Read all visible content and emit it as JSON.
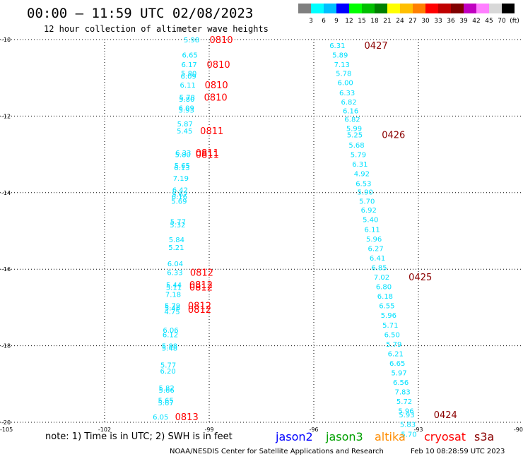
{
  "header": {
    "title": "00:00 – 11:59 UTC 02/08/2023",
    "subtitle": "12 hour collection of altimeter wave heights"
  },
  "color_scale": {
    "labels": [
      "3",
      "6",
      "9",
      "12",
      "15",
      "18",
      "21",
      "24",
      "27",
      "30",
      "33",
      "36",
      "39",
      "42",
      "45",
      "70",
      "(ft)"
    ],
    "colors": [
      "#7f7f7f",
      "#00ffff",
      "#00bfff",
      "#0000ff",
      "#00ff00",
      "#00bf00",
      "#008000",
      "#ffff00",
      "#ffbf00",
      "#ff7f00",
      "#ff0000",
      "#bf0000",
      "#800000",
      "#c000c0",
      "#ff7fff",
      "#d8d8d8",
      "#000000"
    ]
  },
  "axes": {
    "y_ticks": [
      "-10",
      "-12",
      "-14",
      "-16",
      "-18",
      "-20"
    ],
    "x_ticks": [
      "-105",
      "-102",
      "-99",
      "-96",
      "-93",
      "-90"
    ]
  },
  "tracks": [
    {
      "name": "west",
      "color": "#00e0ff",
      "points": [
        {
          "lat": -10.0,
          "lon": -99.73,
          "v": "5.98"
        },
        {
          "lat": -10.4,
          "lon": -99.78,
          "v": "6.65"
        },
        {
          "lat": -10.65,
          "lon": -99.8,
          "v": "6.17"
        },
        {
          "lat": -10.88,
          "lon": -99.81,
          "v": "5.80"
        },
        {
          "lat": -10.95,
          "lon": -99.82,
          "v": "6.09"
        },
        {
          "lat": -11.18,
          "lon": -99.84,
          "v": "6.11"
        },
        {
          "lat": -11.5,
          "lon": -99.86,
          "v": "5.78"
        },
        {
          "lat": -11.55,
          "lon": -99.87,
          "v": "5.80"
        },
        {
          "lat": -11.78,
          "lon": -99.88,
          "v": "6.09"
        },
        {
          "lat": -11.84,
          "lon": -99.88,
          "v": "5.93"
        },
        {
          "lat": -12.2,
          "lon": -99.92,
          "v": "5.87"
        },
        {
          "lat": -12.38,
          "lon": -99.93,
          "v": "5.45"
        },
        {
          "lat": -12.95,
          "lon": -99.97,
          "v": "6.33"
        },
        {
          "lat": -13.0,
          "lon": -99.98,
          "v": "5.80"
        },
        {
          "lat": -13.28,
          "lon": -100.0,
          "v": "5.65"
        },
        {
          "lat": -13.34,
          "lon": -100.01,
          "v": "6.13"
        },
        {
          "lat": -13.62,
          "lon": -100.04,
          "v": "7.19"
        },
        {
          "lat": -13.92,
          "lon": -100.06,
          "v": "6.42"
        },
        {
          "lat": -14.03,
          "lon": -100.07,
          "v": "5.67"
        },
        {
          "lat": -14.1,
          "lon": -100.08,
          "v": "6.16"
        },
        {
          "lat": -14.22,
          "lon": -100.09,
          "v": "5.69"
        },
        {
          "lat": -14.75,
          "lon": -100.12,
          "v": "5.77"
        },
        {
          "lat": -14.83,
          "lon": -100.13,
          "v": "5.32"
        },
        {
          "lat": -15.22,
          "lon": -100.16,
          "v": "5.84"
        },
        {
          "lat": -15.42,
          "lon": -100.17,
          "v": "5.21"
        },
        {
          "lat": -15.85,
          "lon": -100.2,
          "v": "6.04"
        },
        {
          "lat": -16.08,
          "lon": -100.21,
          "v": "6.33"
        },
        {
          "lat": -16.4,
          "lon": -100.24,
          "v": "5.44"
        },
        {
          "lat": -16.47,
          "lon": -100.24,
          "v": "5.11"
        },
        {
          "lat": -16.65,
          "lon": -100.26,
          "v": "7.18"
        },
        {
          "lat": -16.95,
          "lon": -100.28,
          "v": "5.79"
        },
        {
          "lat": -17.0,
          "lon": -100.28,
          "v": "5.46"
        },
        {
          "lat": -17.1,
          "lon": -100.29,
          "v": "4.75"
        },
        {
          "lat": -17.58,
          "lon": -100.33,
          "v": "6.06"
        },
        {
          "lat": -17.7,
          "lon": -100.34,
          "v": "6.12"
        },
        {
          "lat": -18.0,
          "lon": -100.36,
          "v": "5.88"
        },
        {
          "lat": -18.05,
          "lon": -100.36,
          "v": "5.48"
        },
        {
          "lat": -18.5,
          "lon": -100.4,
          "v": "5.77"
        },
        {
          "lat": -18.65,
          "lon": -100.41,
          "v": "6.20"
        },
        {
          "lat": -19.1,
          "lon": -100.45,
          "v": "5.82"
        },
        {
          "lat": -19.15,
          "lon": -100.45,
          "v": "5.66"
        },
        {
          "lat": -19.42,
          "lon": -100.47,
          "v": "5.65"
        },
        {
          "lat": -19.48,
          "lon": -100.47,
          "v": "5.67"
        },
        {
          "lat": -19.85,
          "lon": -100.62,
          "v": "6.05"
        }
      ],
      "passes": [
        {
          "lat": -10.0,
          "lon": -98.99,
          "t": "0810"
        },
        {
          "lat": -10.65,
          "lon": -99.07,
          "t": "0810"
        },
        {
          "lat": -11.18,
          "lon": -99.13,
          "t": "0810"
        },
        {
          "lat": -11.5,
          "lon": -99.15,
          "t": "0810"
        },
        {
          "lat": -12.38,
          "lon": -99.26,
          "t": "0811"
        },
        {
          "lat": -12.95,
          "lon": -99.39,
          "t": "0811"
        },
        {
          "lat": -13.0,
          "lon": -99.39,
          "t": "0811"
        },
        {
          "lat": -16.08,
          "lon": -99.55,
          "t": "0812"
        },
        {
          "lat": -16.4,
          "lon": -99.57,
          "t": "0812"
        },
        {
          "lat": -16.47,
          "lon": -99.57,
          "t": "0812"
        },
        {
          "lat": -16.95,
          "lon": -99.61,
          "t": "0812"
        },
        {
          "lat": -17.05,
          "lon": -99.61,
          "t": "0812"
        },
        {
          "lat": -19.85,
          "lon": -99.98,
          "t": "0813"
        }
      ],
      "pass_color": "#ff0000"
    },
    {
      "name": "east",
      "color": "#00e0ff",
      "points": [
        {
          "lat": -10.15,
          "lon": -95.55,
          "v": "6.31"
        },
        {
          "lat": -10.4,
          "lon": -95.47,
          "v": "5.89"
        },
        {
          "lat": -10.65,
          "lon": -95.42,
          "v": "7.13"
        },
        {
          "lat": -10.88,
          "lon": -95.37,
          "v": "5.78"
        },
        {
          "lat": -11.12,
          "lon": -95.32,
          "v": "6.00"
        },
        {
          "lat": -11.38,
          "lon": -95.27,
          "v": "6.33"
        },
        {
          "lat": -11.62,
          "lon": -95.22,
          "v": "6.82"
        },
        {
          "lat": -11.85,
          "lon": -95.17,
          "v": "6.16"
        },
        {
          "lat": -12.08,
          "lon": -95.12,
          "v": "6.82"
        },
        {
          "lat": -12.32,
          "lon": -95.07,
          "v": "5.99"
        },
        {
          "lat": -12.48,
          "lon": -95.05,
          "v": "5.25"
        },
        {
          "lat": -12.75,
          "lon": -95.0,
          "v": "5.68"
        },
        {
          "lat": -13.0,
          "lon": -94.95,
          "v": "5.79"
        },
        {
          "lat": -13.25,
          "lon": -94.9,
          "v": "6.31"
        },
        {
          "lat": -13.5,
          "lon": -94.85,
          "v": "4.92"
        },
        {
          "lat": -13.75,
          "lon": -94.8,
          "v": "6.53"
        },
        {
          "lat": -13.98,
          "lon": -94.75,
          "v": "5.90"
        },
        {
          "lat": -14.22,
          "lon": -94.7,
          "v": "5.70"
        },
        {
          "lat": -14.45,
          "lon": -94.65,
          "v": "6.92"
        },
        {
          "lat": -14.7,
          "lon": -94.6,
          "v": "5.40"
        },
        {
          "lat": -14.95,
          "lon": -94.55,
          "v": "6.11"
        },
        {
          "lat": -15.2,
          "lon": -94.5,
          "v": "5.96"
        },
        {
          "lat": -15.45,
          "lon": -94.45,
          "v": "6.27"
        },
        {
          "lat": -15.7,
          "lon": -94.4,
          "v": "6.41"
        },
        {
          "lat": -15.95,
          "lon": -94.35,
          "v": "6.85"
        },
        {
          "lat": -16.2,
          "lon": -94.28,
          "v": "7.02"
        },
        {
          "lat": -16.45,
          "lon": -94.22,
          "v": "6.80"
        },
        {
          "lat": -16.7,
          "lon": -94.18,
          "v": "6.18"
        },
        {
          "lat": -16.95,
          "lon": -94.13,
          "v": "6.55"
        },
        {
          "lat": -17.2,
          "lon": -94.08,
          "v": "5.96"
        },
        {
          "lat": -17.45,
          "lon": -94.03,
          "v": "5.71"
        },
        {
          "lat": -17.7,
          "lon": -93.98,
          "v": "6.50"
        },
        {
          "lat": -17.95,
          "lon": -93.93,
          "v": "5.79"
        },
        {
          "lat": -18.2,
          "lon": -93.88,
          "v": "6.21"
        },
        {
          "lat": -18.45,
          "lon": -93.83,
          "v": "6.65"
        },
        {
          "lat": -18.7,
          "lon": -93.78,
          "v": "5.97"
        },
        {
          "lat": -18.95,
          "lon": -93.73,
          "v": "6.56"
        },
        {
          "lat": -19.2,
          "lon": -93.68,
          "v": "7.83"
        },
        {
          "lat": -19.45,
          "lon": -93.63,
          "v": "5.72"
        },
        {
          "lat": -19.7,
          "lon": -93.58,
          "v": "5.96"
        },
        {
          "lat": -19.8,
          "lon": -93.56,
          "v": "5.93"
        },
        {
          "lat": -20.05,
          "lon": -93.53,
          "v": "5.83"
        },
        {
          "lat": -20.3,
          "lon": -93.5,
          "v": "5.70"
        }
      ],
      "passes": [
        {
          "lat": -10.15,
          "lon": -94.55,
          "t": "0427"
        },
        {
          "lat": -12.48,
          "lon": -94.05,
          "t": "0426"
        },
        {
          "lat": -16.2,
          "lon": -93.28,
          "t": "0425"
        },
        {
          "lat": -19.8,
          "lon": -92.56,
          "t": "0424"
        }
      ],
      "pass_color": "#8b0000"
    }
  ],
  "footer": {
    "note": "note:  1) Time is in UTC;  2) SWH is in feet",
    "satellites": [
      {
        "name": "jason2",
        "color": "#0000ff"
      },
      {
        "name": "jason3",
        "color": "#00a000"
      },
      {
        "name": "altika",
        "color": "#ff8c00"
      },
      {
        "name": "cryosat",
        "color": "#ff0000"
      },
      {
        "name": "s3a",
        "color": "#8b0000"
      }
    ],
    "credit": "NOAA/NESDIS Center for Satellite Applications and Research",
    "stamp": "Feb 10 08:28:59 UTC 2023"
  }
}
